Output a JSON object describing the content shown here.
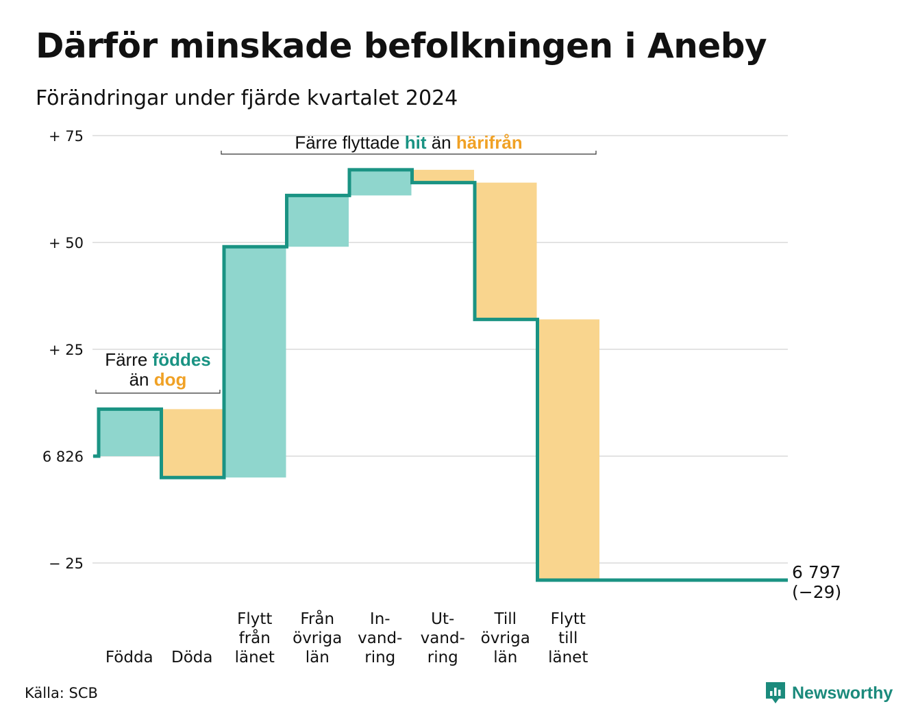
{
  "title": "Därför minskade befolkningen i Aneby",
  "subtitle": "Förändringar under fjärde kvartalet 2024",
  "source": "Källa: SCB",
  "brand": {
    "name": "Newsworthy",
    "icon": "newsworthy-logo-icon"
  },
  "colors": {
    "increase": "#8fd6cd",
    "decrease": "#f9d58e",
    "line": "#1a9383",
    "grid": "#e3e3e3"
  },
  "chart_data": {
    "type": "waterfall",
    "title": "Därför minskade befolkningen i Aneby",
    "subtitle": "Förändringar under fjärde kvartalet 2024",
    "start_value": 6826,
    "end_value": 6797,
    "net_change": -29,
    "end_label": [
      "6 797",
      "(−29)"
    ],
    "ylim": [
      -30,
      78
    ],
    "yticks": [
      {
        "value": 75,
        "label": "+ 75"
      },
      {
        "value": 50,
        "label": "+ 50"
      },
      {
        "value": 25,
        "label": "+ 25"
      },
      {
        "value": 0,
        "label": "6 826"
      },
      {
        "value": -25,
        "label": "− 25"
      }
    ],
    "grid": true,
    "steps": [
      {
        "label": [
          "Födda"
        ],
        "value": 11
      },
      {
        "label": [
          "Döda"
        ],
        "value": -16
      },
      {
        "label": [
          "Flytt",
          "från",
          "länet"
        ],
        "value": 54
      },
      {
        "label": [
          "Från",
          "övriga",
          "län"
        ],
        "value": 12
      },
      {
        "label": [
          "In-",
          "vand-",
          "ring"
        ],
        "value": 6
      },
      {
        "label": [
          "Ut-",
          "vand-",
          "ring"
        ],
        "value": -3
      },
      {
        "label": [
          "Till",
          "övriga",
          "län"
        ],
        "value": -32
      },
      {
        "label": [
          "Flytt",
          "till",
          "länet"
        ],
        "value": -61
      }
    ],
    "annotations": [
      {
        "lines": [
          [
            {
              "text": "Färre ",
              "kind": "plain"
            },
            {
              "text": "föddes",
              "kind": "in"
            }
          ],
          [
            {
              "text": "än ",
              "kind": "plain"
            },
            {
              "text": "dog",
              "kind": "out"
            }
          ]
        ],
        "from_step": 0,
        "to_step": 1
      },
      {
        "lines": [
          [
            {
              "text": "Färre flyttade ",
              "kind": "plain"
            },
            {
              "text": "hit",
              "kind": "in"
            },
            {
              "text": " än ",
              "kind": "plain"
            },
            {
              "text": "härifrån",
              "kind": "out"
            }
          ]
        ],
        "from_step": 2,
        "to_step": 7
      }
    ]
  }
}
